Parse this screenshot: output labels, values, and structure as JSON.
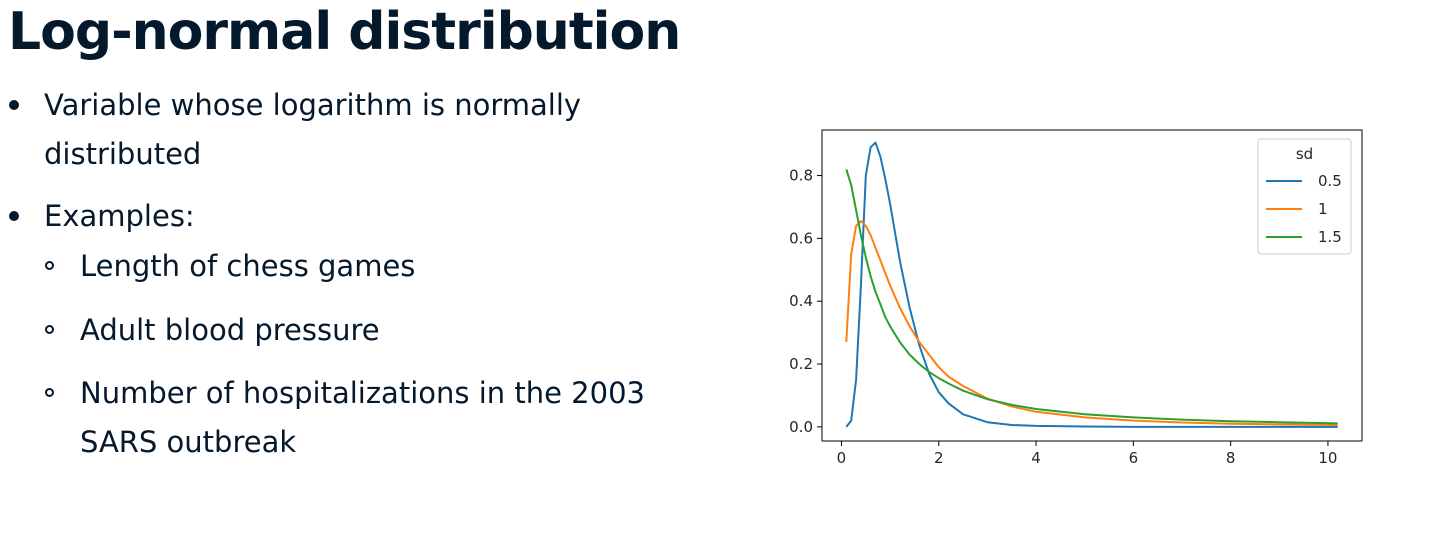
{
  "slide": {
    "title": "Log-normal distribution",
    "bullets": [
      {
        "lines": [
          "Variable whose logarithm is normally",
          "distributed"
        ]
      },
      {
        "lines": [
          "Examples:"
        ],
        "sub": [
          {
            "lines": [
              "Length of chess games"
            ]
          },
          {
            "lines": [
              "Adult blood pressure"
            ]
          },
          {
            "lines": [
              "Number of hospitalizations in the 2003",
              "SARS outbreak"
            ]
          }
        ]
      }
    ]
  },
  "chart_data": {
    "type": "line",
    "title": "",
    "xlabel": "",
    "ylabel": "",
    "xlim": [
      -0.4,
      10.7
    ],
    "ylim": [
      -0.045,
      0.945
    ],
    "xticks": [
      0,
      2,
      4,
      6,
      8,
      10
    ],
    "yticks": [
      0.0,
      0.2,
      0.4,
      0.6,
      0.8
    ],
    "grid": false,
    "legend": {
      "title": "sd",
      "placement": "top-right"
    },
    "x": [
      0.1,
      0.2,
      0.3,
      0.4,
      0.5,
      0.6,
      0.7,
      0.8,
      0.9,
      1.0,
      1.2,
      1.4,
      1.6,
      1.8,
      2.0,
      2.2,
      2.5,
      3.0,
      3.5,
      4.0,
      5.0,
      6.0,
      7.0,
      8.0,
      9.0,
      10.2
    ],
    "series": [
      {
        "name": "0.5",
        "color": "#1f77b4",
        "values": [
          0.0,
          0.02,
          0.15,
          0.45,
          0.8,
          0.89,
          0.905,
          0.86,
          0.79,
          0.71,
          0.53,
          0.38,
          0.26,
          0.17,
          0.11,
          0.075,
          0.04,
          0.015,
          0.006,
          0.003,
          0.001,
          0.0,
          0.0,
          0.0,
          0.0,
          0.0
        ]
      },
      {
        "name": "1",
        "color": "#ff7f0e",
        "values": [
          0.27,
          0.55,
          0.64,
          0.655,
          0.64,
          0.61,
          0.57,
          0.53,
          0.49,
          0.45,
          0.38,
          0.32,
          0.27,
          0.23,
          0.19,
          0.16,
          0.13,
          0.09,
          0.065,
          0.048,
          0.03,
          0.02,
          0.014,
          0.01,
          0.008,
          0.006
        ]
      },
      {
        "name": "1.5",
        "color": "#2ca02c",
        "values": [
          0.82,
          0.77,
          0.69,
          0.61,
          0.54,
          0.48,
          0.43,
          0.39,
          0.35,
          0.32,
          0.27,
          0.23,
          0.2,
          0.175,
          0.155,
          0.138,
          0.115,
          0.088,
          0.07,
          0.057,
          0.04,
          0.03,
          0.023,
          0.018,
          0.015,
          0.011
        ]
      }
    ]
  }
}
